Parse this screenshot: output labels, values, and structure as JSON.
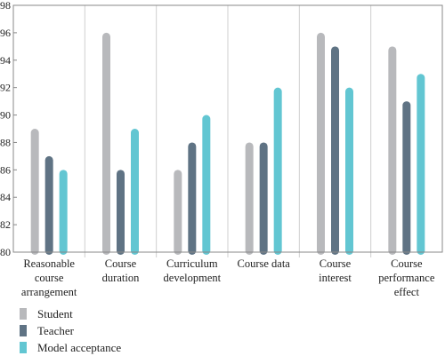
{
  "chart_data": {
    "type": "bar",
    "title": "",
    "xlabel": "",
    "ylabel": "",
    "ylim": [
      80,
      98
    ],
    "yticks": [
      80,
      82,
      84,
      86,
      88,
      90,
      92,
      94,
      96,
      98
    ],
    "grid": "vertical category separators",
    "legend_position": "bottom-left",
    "categories": [
      "Reasonable course arrangement",
      "Course duration",
      "Curriculum development",
      "Course data",
      "Course interest",
      "Course performance effect"
    ],
    "category_lines": [
      [
        "Reasonable",
        "course",
        "arrangement"
      ],
      [
        "Course",
        "duration"
      ],
      [
        "Curriculum",
        "development"
      ],
      [
        "Course data"
      ],
      [
        "Course",
        "interest"
      ],
      [
        "Course",
        "performance",
        "effect"
      ]
    ],
    "series": [
      {
        "name": "Student",
        "color": "#b8b9bc",
        "values": [
          89,
          96,
          86,
          88,
          96,
          95
        ]
      },
      {
        "name": "Teacher",
        "color": "#5f7384",
        "values": [
          87,
          86,
          88,
          88,
          95,
          91
        ]
      },
      {
        "name": "Model acceptance",
        "color": "#62c6d2",
        "values": [
          86,
          89,
          90,
          92,
          92,
          93
        ]
      }
    ]
  }
}
